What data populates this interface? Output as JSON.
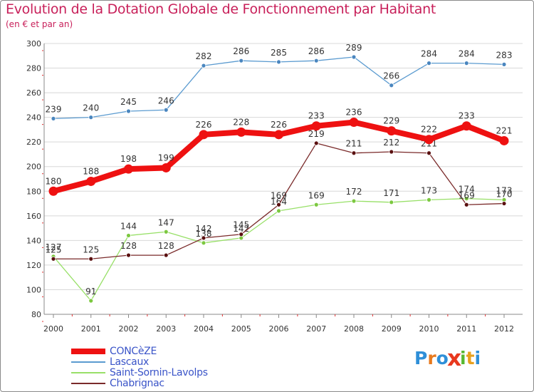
{
  "header": {
    "title": "Evolution de la Dotation Globale de Fonctionnement par Habitant",
    "subtitle": "(en € et par an)"
  },
  "chart_data": {
    "type": "line",
    "title": "Evolution de la Dotation Globale de Fonctionnement par Habitant",
    "subtitle": "(en € et par an)",
    "xlabel": "",
    "ylabel": "",
    "ylim": [
      80,
      300
    ],
    "yticks": [
      80,
      100,
      120,
      140,
      160,
      180,
      200,
      220,
      240,
      260,
      280,
      300
    ],
    "grid": "horizontal",
    "categories": [
      "2000",
      "2001",
      "2002",
      "2003",
      "2004",
      "2005",
      "2006",
      "2007",
      "2008",
      "2009",
      "2010",
      "2011",
      "2012"
    ],
    "series": [
      {
        "name": "Lascaux",
        "color": "#5b9bd0",
        "marker": "#4a86bf",
        "values": [
          239,
          240,
          245,
          246,
          282,
          286,
          285,
          286,
          289,
          266,
          284,
          284,
          283
        ]
      },
      {
        "name": "Saint-Sornin-Lavolps",
        "color": "#98e068",
        "marker": "#7cc840",
        "values": [
          127,
          91,
          144,
          147,
          138,
          142,
          164,
          169,
          172,
          171,
          173,
          174,
          173
        ]
      },
      {
        "name": "Chabrignac",
        "color": "#7a2a2a",
        "marker": "#5a1010",
        "values": [
          125,
          125,
          128,
          128,
          142,
          145,
          169,
          219,
          211,
          212,
          211,
          169,
          170
        ]
      },
      {
        "name": "CONCèZE",
        "color": "#ee1111",
        "marker": "#ee1111",
        "values": [
          180,
          188,
          198,
          199,
          226,
          228,
          226,
          233,
          236,
          229,
          222,
          233,
          221
        ]
      }
    ],
    "legend": {
      "position": "bottom-left",
      "items": [
        {
          "name": "CONCèZE",
          "color": "#ee1111"
        },
        {
          "name": "Lascaux",
          "color": "#5b9bd0"
        },
        {
          "name": "Saint-Sornin-Lavolps",
          "color": "#98e068"
        },
        {
          "name": "Chabrignac",
          "color": "#7a2a2a"
        }
      ]
    }
  },
  "logo": {
    "text": "Proxiti",
    "letters": [
      "P",
      "r",
      "o",
      "x",
      "i",
      "t",
      "i"
    ],
    "colors": [
      "#2f8fd8",
      "#e87a1e",
      "#2f8fd8",
      "#e8381e",
      "#58b830",
      "#e8a01e",
      "#2f8fd8"
    ]
  }
}
